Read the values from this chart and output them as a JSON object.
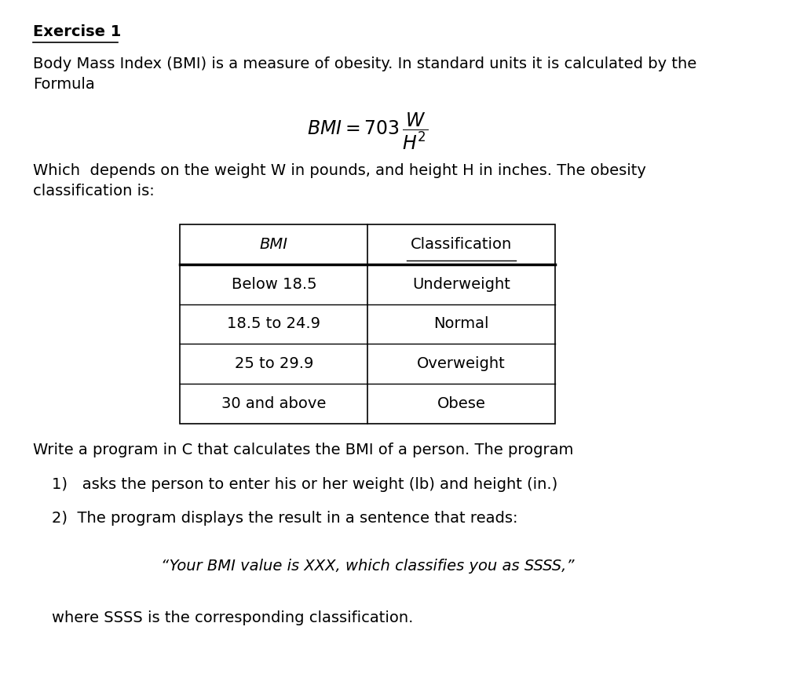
{
  "background_color": "#ffffff",
  "title": "Exercise 1",
  "paragraph1": "Body Mass Index (BMI) is a measure of obesity. In standard units it is calculated by the\nFormula",
  "formula_text": "$\\mathit{BMI} = 703\\,\\dfrac{W}{H^2}$",
  "paragraph2": "Which  depends on the weight W in pounds, and height H in inches. The obesity\nclassification is:",
  "table_headers": [
    "BMI",
    "Classification"
  ],
  "table_rows": [
    [
      "Below 18.5",
      "Underweight"
    ],
    [
      "18.5 to 24.9",
      "Normal"
    ],
    [
      "25 to 29.9",
      "Overweight"
    ],
    [
      "30 and above",
      "Obese"
    ]
  ],
  "paragraph3": "Write a program in C that calculates the BMI of a person. The program",
  "list_items": [
    "1)   asks the person to enter his or her weight (lb) and height (in.)",
    "2)  The program displays the result in a sentence that reads:"
  ],
  "quote": "“Your BMI value is XXX, which classifies you as SSSS,”",
  "paragraph4": "where SSSS is the corresponding classification.",
  "font_size": 14,
  "title_font_size": 14
}
